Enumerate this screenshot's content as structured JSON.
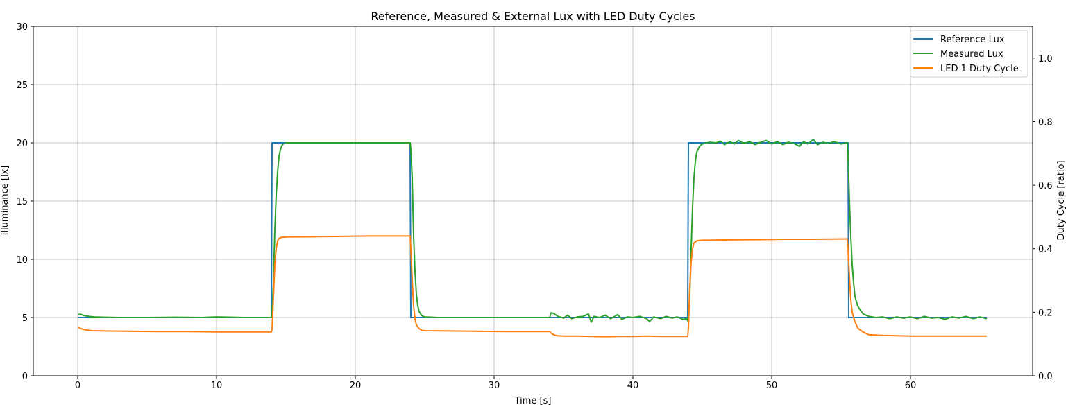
{
  "chart_data": {
    "type": "line",
    "title": "Reference, Measured & External Lux with LED Duty Cycles",
    "xlabel": "Time [s]",
    "ylabel": "Illuminance [lx]",
    "y2label": "Duty Cycle [ratio]",
    "xlim": [
      -3.2,
      68.8
    ],
    "ylim": [
      0,
      30
    ],
    "y2lim": [
      0,
      1.1
    ],
    "xticks": [
      0,
      10,
      20,
      30,
      40,
      50,
      60
    ],
    "yticks": [
      0,
      5,
      10,
      15,
      20,
      25,
      30
    ],
    "y2ticks": [
      0.0,
      0.2,
      0.4,
      0.6,
      0.8,
      1.0
    ],
    "xtick_labels": [
      "0",
      "10",
      "20",
      "30",
      "40",
      "50",
      "60"
    ],
    "ytick_labels": [
      "0",
      "5",
      "10",
      "15",
      "20",
      "25",
      "30"
    ],
    "y2tick_labels": [
      "0.0",
      "0.2",
      "0.4",
      "0.6",
      "0.8",
      "1.0"
    ],
    "grid": true,
    "legend_position": "top-right",
    "series": [
      {
        "name": "Reference Lux",
        "axis": "left",
        "color": "#1f77b4",
        "points": [
          [
            0,
            5
          ],
          [
            13.95,
            5
          ],
          [
            14.0,
            20
          ],
          [
            23.95,
            20
          ],
          [
            24.0,
            5
          ],
          [
            43.95,
            5
          ],
          [
            44.0,
            20
          ],
          [
            55.5,
            20
          ],
          [
            55.55,
            5
          ],
          [
            65.5,
            5
          ]
        ]
      },
      {
        "name": "Measured Lux",
        "axis": "left",
        "color": "#2ca02c",
        "points": [
          [
            0,
            5.25
          ],
          [
            0.2,
            5.28
          ],
          [
            0.5,
            5.15
          ],
          [
            0.8,
            5.1
          ],
          [
            1.2,
            5.05
          ],
          [
            2,
            5.02
          ],
          [
            3,
            5.0
          ],
          [
            5,
            5.0
          ],
          [
            7,
            5.02
          ],
          [
            9,
            5.0
          ],
          [
            10,
            5.05
          ],
          [
            12,
            5.0
          ],
          [
            13.9,
            5.0
          ],
          [
            14.0,
            5.1
          ],
          [
            14.1,
            8
          ],
          [
            14.2,
            12.5
          ],
          [
            14.3,
            15.5
          ],
          [
            14.4,
            17.5
          ],
          [
            14.5,
            18.8
          ],
          [
            14.6,
            19.4
          ],
          [
            14.7,
            19.75
          ],
          [
            14.8,
            19.9
          ],
          [
            15,
            20.0
          ],
          [
            17,
            20.0
          ],
          [
            19,
            20.0
          ],
          [
            21,
            20.0
          ],
          [
            23,
            20.0
          ],
          [
            23.95,
            20.0
          ],
          [
            24.0,
            19.5
          ],
          [
            24.1,
            17
          ],
          [
            24.2,
            12
          ],
          [
            24.3,
            9
          ],
          [
            24.4,
            7
          ],
          [
            24.5,
            6
          ],
          [
            24.6,
            5.5
          ],
          [
            24.8,
            5.15
          ],
          [
            25,
            5.05
          ],
          [
            26,
            5.0
          ],
          [
            28,
            5.0
          ],
          [
            30,
            5.0
          ],
          [
            32,
            5.0
          ],
          [
            34,
            5.0
          ],
          [
            34.1,
            5.4
          ],
          [
            34.3,
            5.35
          ],
          [
            34.6,
            5.1
          ],
          [
            35,
            4.95
          ],
          [
            35.3,
            5.2
          ],
          [
            35.6,
            4.9
          ],
          [
            36,
            5.05
          ],
          [
            36.4,
            5.1
          ],
          [
            36.8,
            5.3
          ],
          [
            37.0,
            4.6
          ],
          [
            37.2,
            5.1
          ],
          [
            37.6,
            5.0
          ],
          [
            38,
            5.2
          ],
          [
            38.4,
            4.9
          ],
          [
            38.9,
            5.25
          ],
          [
            39.2,
            4.85
          ],
          [
            39.6,
            5.05
          ],
          [
            40,
            5.0
          ],
          [
            40.5,
            5.1
          ],
          [
            41.0,
            4.9
          ],
          [
            41.2,
            4.65
          ],
          [
            41.5,
            5.05
          ],
          [
            42,
            4.9
          ],
          [
            42.4,
            5.1
          ],
          [
            42.8,
            4.95
          ],
          [
            43.2,
            5.05
          ],
          [
            43.6,
            4.85
          ],
          [
            43.9,
            4.9
          ],
          [
            44.0,
            4.6
          ],
          [
            44.1,
            7
          ],
          [
            44.2,
            11
          ],
          [
            44.3,
            14.5
          ],
          [
            44.4,
            17
          ],
          [
            44.5,
            18.4
          ],
          [
            44.6,
            19.2
          ],
          [
            44.8,
            19.7
          ],
          [
            45,
            19.9
          ],
          [
            45.5,
            20.05
          ],
          [
            46,
            20.0
          ],
          [
            46.3,
            20.15
          ],
          [
            46.6,
            19.85
          ],
          [
            47,
            20.1
          ],
          [
            47.3,
            19.9
          ],
          [
            47.6,
            20.2
          ],
          [
            48,
            19.95
          ],
          [
            48.4,
            20.1
          ],
          [
            48.8,
            19.85
          ],
          [
            49.2,
            20.05
          ],
          [
            49.6,
            20.2
          ],
          [
            50,
            19.9
          ],
          [
            50.4,
            20.1
          ],
          [
            50.8,
            19.85
          ],
          [
            51.2,
            20.05
          ],
          [
            51.6,
            19.95
          ],
          [
            52.0,
            19.7
          ],
          [
            52.3,
            20.1
          ],
          [
            52.6,
            19.9
          ],
          [
            53.0,
            20.3
          ],
          [
            53.3,
            19.85
          ],
          [
            53.7,
            20.05
          ],
          [
            54.1,
            19.95
          ],
          [
            54.5,
            20.1
          ],
          [
            55.0,
            19.9
          ],
          [
            55.45,
            20.0
          ],
          [
            55.5,
            19.0
          ],
          [
            55.6,
            15
          ],
          [
            55.7,
            12
          ],
          [
            55.8,
            9.5
          ],
          [
            55.9,
            8
          ],
          [
            56.0,
            6.8
          ],
          [
            56.2,
            6.0
          ],
          [
            56.4,
            5.6
          ],
          [
            56.6,
            5.3
          ],
          [
            57,
            5.1
          ],
          [
            57.5,
            5.0
          ],
          [
            58,
            5.05
          ],
          [
            58.5,
            4.9
          ],
          [
            59,
            5.05
          ],
          [
            59.5,
            4.95
          ],
          [
            60,
            5.05
          ],
          [
            60.5,
            4.9
          ],
          [
            61,
            5.1
          ],
          [
            61.5,
            4.95
          ],
          [
            62,
            5.0
          ],
          [
            62.5,
            4.85
          ],
          [
            63,
            5.05
          ],
          [
            63.5,
            4.95
          ],
          [
            64,
            5.1
          ],
          [
            64.5,
            4.9
          ],
          [
            65,
            5.05
          ],
          [
            65.5,
            4.9
          ]
        ]
      },
      {
        "name": "LED 1 Duty Cycle",
        "axis": "right",
        "color": "#ff7f0e",
        "points": [
          [
            0,
            0.153
          ],
          [
            0.2,
            0.149
          ],
          [
            0.5,
            0.145
          ],
          [
            1,
            0.142
          ],
          [
            2,
            0.141
          ],
          [
            4,
            0.14
          ],
          [
            6,
            0.139
          ],
          [
            8,
            0.139
          ],
          [
            10,
            0.138
          ],
          [
            12,
            0.138
          ],
          [
            13.95,
            0.138
          ],
          [
            14.0,
            0.145
          ],
          [
            14.1,
            0.25
          ],
          [
            14.2,
            0.35
          ],
          [
            14.3,
            0.4
          ],
          [
            14.4,
            0.425
          ],
          [
            14.5,
            0.433
          ],
          [
            14.7,
            0.436
          ],
          [
            15,
            0.437
          ],
          [
            17,
            0.438
          ],
          [
            19,
            0.439
          ],
          [
            21,
            0.44
          ],
          [
            23,
            0.44
          ],
          [
            23.95,
            0.44
          ],
          [
            24.0,
            0.4
          ],
          [
            24.1,
            0.3
          ],
          [
            24.2,
            0.22
          ],
          [
            24.3,
            0.18
          ],
          [
            24.4,
            0.16
          ],
          [
            24.6,
            0.148
          ],
          [
            24.8,
            0.143
          ],
          [
            25,
            0.142
          ],
          [
            27,
            0.141
          ],
          [
            29,
            0.14
          ],
          [
            31,
            0.139
          ],
          [
            33,
            0.139
          ],
          [
            34.0,
            0.139
          ],
          [
            34.2,
            0.131
          ],
          [
            34.5,
            0.126
          ],
          [
            35,
            0.125
          ],
          [
            36,
            0.125
          ],
          [
            37,
            0.124
          ],
          [
            38,
            0.123
          ],
          [
            39,
            0.124
          ],
          [
            40,
            0.124
          ],
          [
            41,
            0.125
          ],
          [
            42,
            0.124
          ],
          [
            43,
            0.124
          ],
          [
            43.95,
            0.124
          ],
          [
            44.0,
            0.15
          ],
          [
            44.1,
            0.28
          ],
          [
            44.2,
            0.36
          ],
          [
            44.3,
            0.4
          ],
          [
            44.4,
            0.418
          ],
          [
            44.6,
            0.425
          ],
          [
            45,
            0.427
          ],
          [
            47,
            0.428
          ],
          [
            49,
            0.429
          ],
          [
            51,
            0.43
          ],
          [
            53,
            0.43
          ],
          [
            55.45,
            0.431
          ],
          [
            55.5,
            0.4
          ],
          [
            55.6,
            0.31
          ],
          [
            55.7,
            0.24
          ],
          [
            55.8,
            0.2
          ],
          [
            56.0,
            0.17
          ],
          [
            56.2,
            0.15
          ],
          [
            56.5,
            0.14
          ],
          [
            56.8,
            0.133
          ],
          [
            57,
            0.129
          ],
          [
            58,
            0.127
          ],
          [
            60,
            0.125
          ],
          [
            62,
            0.125
          ],
          [
            64,
            0.125
          ],
          [
            65.5,
            0.125
          ]
        ]
      }
    ]
  }
}
